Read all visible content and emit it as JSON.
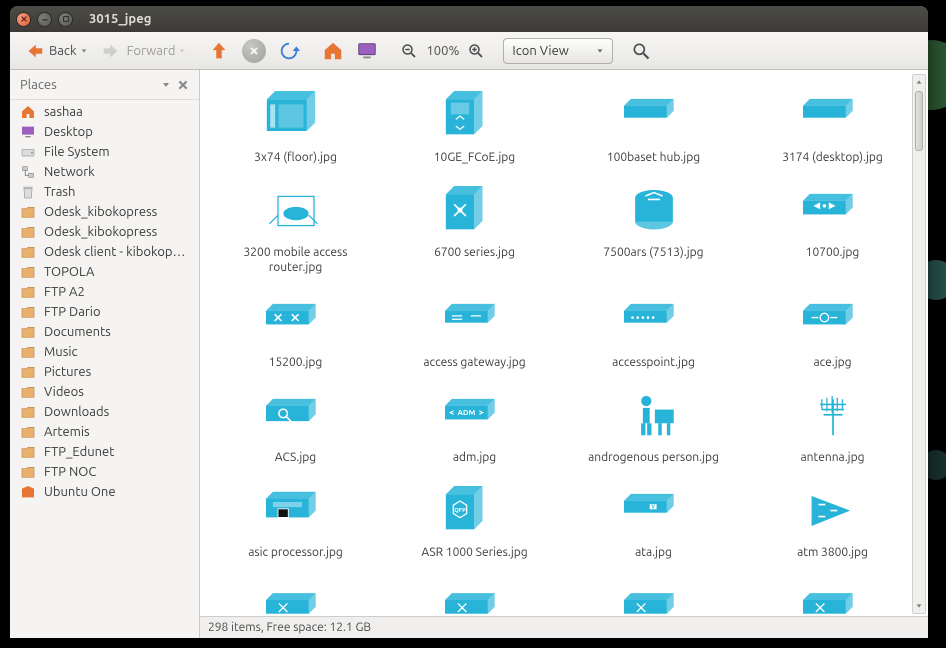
{
  "window": {
    "title": "3015_jpeg"
  },
  "toolbar": {
    "back": "Back",
    "forward": "Forward",
    "zoom": "100%",
    "view": "Icon View"
  },
  "sidebar": {
    "header": "Places",
    "items": [
      {
        "name": "home",
        "label": "sashaa",
        "icon": "home"
      },
      {
        "name": "desktop",
        "label": "Desktop",
        "icon": "desktop"
      },
      {
        "name": "filesystem",
        "label": "File System",
        "icon": "drive"
      },
      {
        "name": "network",
        "label": "Network",
        "icon": "network"
      },
      {
        "name": "trash",
        "label": "Trash",
        "icon": "trash"
      },
      {
        "name": "odesk1",
        "label": "Odesk_kibokopress",
        "icon": "folder"
      },
      {
        "name": "odesk2",
        "label": "Odesk_kibokopress",
        "icon": "folder"
      },
      {
        "name": "odesk3",
        "label": "Odesk client - kibokop…",
        "icon": "folder"
      },
      {
        "name": "topola",
        "label": "TOPOLA",
        "icon": "folder"
      },
      {
        "name": "ftpa2",
        "label": "FTP A2",
        "icon": "folder"
      },
      {
        "name": "ftpdario",
        "label": "FTP Dario",
        "icon": "folder"
      },
      {
        "name": "documents",
        "label": "Documents",
        "icon": "folder"
      },
      {
        "name": "music",
        "label": "Music",
        "icon": "folder"
      },
      {
        "name": "pictures",
        "label": "Pictures",
        "icon": "folder"
      },
      {
        "name": "videos",
        "label": "Videos",
        "icon": "folder"
      },
      {
        "name": "downloads",
        "label": "Downloads",
        "icon": "folder"
      },
      {
        "name": "artemis",
        "label": "Artemis",
        "icon": "folder"
      },
      {
        "name": "ftpedunet",
        "label": "FTP_Edunet",
        "icon": "folder"
      },
      {
        "name": "ftpnoc",
        "label": "FTP NOC",
        "icon": "folder"
      },
      {
        "name": "ubuntuone",
        "label": "Ubuntu One",
        "icon": "ubuntu"
      }
    ]
  },
  "files": [
    {
      "name": "3x74 (floor).jpg",
      "icon": "box-slots"
    },
    {
      "name": "10GE_FCoE.jpg",
      "icon": "tall-box-arrows"
    },
    {
      "name": "100baset hub.jpg",
      "icon": "flat-box"
    },
    {
      "name": "3174 (desktop).jpg",
      "icon": "flat-box"
    },
    {
      "name": "3200 mobile access router.jpg",
      "icon": "router-cube"
    },
    {
      "name": "6700 series.jpg",
      "icon": "tall-box-cross"
    },
    {
      "name": "7500ars (7513).jpg",
      "icon": "cylinder-arrows"
    },
    {
      "name": "10700.jpg",
      "icon": "flat-box-arrows"
    },
    {
      "name": "15200.jpg",
      "icon": "flat-box-cross"
    },
    {
      "name": "access gateway.jpg",
      "icon": "flat-box-lines"
    },
    {
      "name": "accesspoint.jpg",
      "icon": "flat-box-dots"
    },
    {
      "name": "ace.jpg",
      "icon": "flat-box-circle"
    },
    {
      "name": "ACS.jpg",
      "icon": "flat-box-search"
    },
    {
      "name": "adm.jpg",
      "icon": "flat-box-adm"
    },
    {
      "name": "androgenous person.jpg",
      "icon": "person"
    },
    {
      "name": "antenna.jpg",
      "icon": "antenna"
    },
    {
      "name": "asic processor.jpg",
      "icon": "flat-box-chip"
    },
    {
      "name": "ASR 1000 Series.jpg",
      "icon": "tall-box-hex"
    },
    {
      "name": "ata.jpg",
      "icon": "flat-box-v"
    },
    {
      "name": "atm 3800.jpg",
      "icon": "triangle-arrows"
    }
  ],
  "partial_row_count": 4,
  "status": "298 items, Free space: 12.1 GB",
  "colors": {
    "accent": "#27b4d8",
    "orange": "#e77635",
    "blue": "#3b7dd8"
  }
}
